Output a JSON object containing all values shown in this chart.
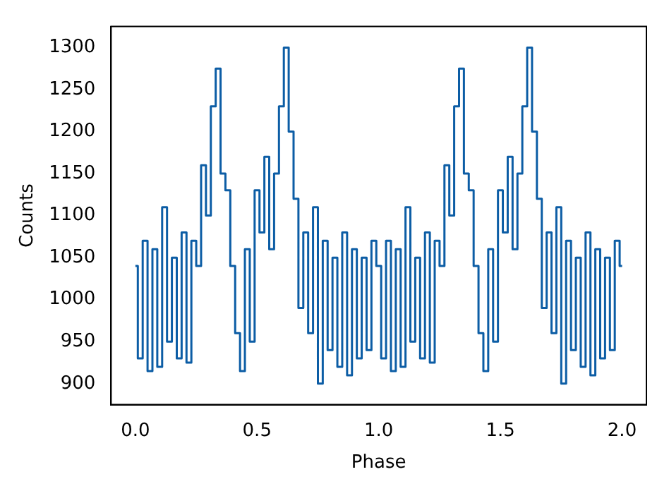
{
  "chart_data": {
    "type": "step",
    "xlabel": "Phase",
    "ylabel": "Counts",
    "color": "#0c5da5",
    "xlim": [
      -0.1,
      2.1
    ],
    "xticks": [
      {
        "value": 0,
        "label": "0.0"
      },
      0.5,
      {
        "value": 1,
        "label": "1.0"
      },
      1.5,
      {
        "value": 2,
        "label": "2.0"
      }
    ],
    "ylim": [
      875,
      1325
    ],
    "yticks": [
      900,
      950,
      1000,
      1050,
      1100,
      1150,
      1200,
      1250,
      1300
    ],
    "x": [
      0,
      0.02,
      0.04,
      0.06,
      0.08,
      0.1,
      0.12,
      0.14,
      0.16,
      0.18,
      0.2,
      0.22,
      0.24,
      0.26,
      0.28,
      0.3,
      0.32,
      0.34,
      0.36,
      0.38,
      0.4,
      0.42,
      0.44,
      0.46,
      0.48,
      0.5,
      0.52,
      0.54,
      0.56,
      0.58,
      0.6,
      0.62,
      0.64,
      0.66,
      0.68,
      0.7,
      0.72,
      0.74,
      0.76,
      0.78,
      0.8,
      0.82,
      0.84,
      0.86,
      0.88,
      0.9,
      0.92,
      0.94,
      0.96,
      0.98,
      1,
      1.02,
      1.04,
      1.06,
      1.08,
      1.1,
      1.12,
      1.14,
      1.16,
      1.18,
      1.2,
      1.22,
      1.24,
      1.26,
      1.28,
      1.3,
      1.32,
      1.34,
      1.36,
      1.38,
      1.4,
      1.42,
      1.44,
      1.46,
      1.48,
      1.5,
      1.52,
      1.54,
      1.56,
      1.58,
      1.6,
      1.62,
      1.64,
      1.66,
      1.68,
      1.7,
      1.72,
      1.74,
      1.76,
      1.78,
      1.8,
      1.82,
      1.84,
      1.86,
      1.88,
      1.9,
      1.92,
      1.94,
      1.96,
      1.98,
      2
    ],
    "values": [
      1040,
      930,
      1070,
      915,
      1060,
      920,
      1110,
      950,
      1050,
      930,
      1080,
      925,
      1070,
      1040,
      1160,
      1100,
      1230,
      1275,
      1150,
      1130,
      1040,
      960,
      915,
      1060,
      950,
      1130,
      1080,
      1170,
      1060,
      1150,
      1230,
      1300,
      1200,
      1120,
      990,
      1080,
      960,
      1110,
      900,
      1070,
      940,
      1050,
      920,
      1080,
      910,
      1060,
      930,
      1050,
      940,
      1070,
      1040,
      930,
      1070,
      915,
      1060,
      920,
      1110,
      950,
      1050,
      930,
      1080,
      925,
      1070,
      1040,
      1160,
      1100,
      1230,
      1275,
      1150,
      1130,
      1040,
      960,
      915,
      1060,
      950,
      1130,
      1080,
      1170,
      1060,
      1150,
      1230,
      1300,
      1200,
      1120,
      990,
      1080,
      960,
      1110,
      900,
      1070,
      940,
      1050,
      920,
      1080,
      910,
      1060,
      930,
      1050,
      940,
      1070,
      1040
    ]
  }
}
